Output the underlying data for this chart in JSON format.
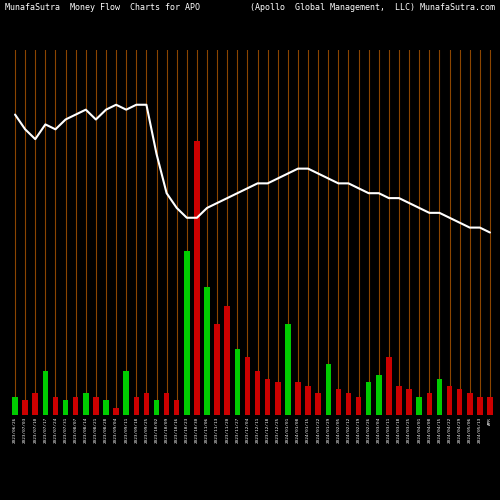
{
  "title_left": "MunafaSutra  Money Flow  Charts for APO",
  "title_right": "(Apollo  Global Management,  LLC) MunafaSutra.com",
  "bg_color": "#000000",
  "grid_color": "#8B4500",
  "line_color": "#FFFFFF",
  "bar_colors": [
    "#00CC00",
    "#CC0000",
    "#CC0000",
    "#00CC00",
    "#CC0000",
    "#00CC00",
    "#CC0000",
    "#00CC00",
    "#CC0000",
    "#00CC00",
    "#CC0000",
    "#00CC00",
    "#CC0000",
    "#CC0000",
    "#00CC00",
    "#CC0000",
    "#CC0000",
    "#00CC00",
    "#CC0000",
    "#00CC00",
    "#CC0000",
    "#CC0000",
    "#00CC00",
    "#CC0000",
    "#CC0000",
    "#CC0000",
    "#CC0000",
    "#00CC00",
    "#CC0000",
    "#CC0000",
    "#CC0000",
    "#00CC00",
    "#CC0000",
    "#CC0000",
    "#CC0000",
    "#00CC00",
    "#00CC00",
    "#CC0000",
    "#CC0000",
    "#CC0000",
    "#00CC00",
    "#CC0000",
    "#00CC00",
    "#CC0000",
    "#CC0000",
    "#CC0000",
    "#CC0000",
    "#CC0000"
  ],
  "bar_values": [
    5,
    4,
    6,
    12,
    5,
    4,
    5,
    6,
    5,
    4,
    2,
    12,
    5,
    6,
    4,
    6,
    4,
    45,
    75,
    35,
    25,
    30,
    18,
    16,
    12,
    10,
    9,
    25,
    9,
    8,
    6,
    14,
    7,
    6,
    5,
    9,
    11,
    16,
    8,
    7,
    5,
    6,
    10,
    8,
    7,
    6,
    5,
    5
  ],
  "line_values": [
    76,
    73,
    71,
    74,
    73,
    75,
    76,
    77,
    75,
    77,
    78,
    77,
    78,
    78,
    68,
    60,
    57,
    55,
    55,
    57,
    58,
    59,
    60,
    61,
    62,
    62,
    63,
    64,
    65,
    65,
    64,
    63,
    62,
    62,
    61,
    60,
    60,
    59,
    59,
    58,
    57,
    56,
    56,
    55,
    54,
    53,
    53,
    52
  ],
  "x_labels": [
    "2023/06/26",
    "2023/07/03",
    "2023/07/10",
    "2023/07/17",
    "2023/07/24",
    "2023/07/31",
    "2023/08/07",
    "2023/08/14",
    "2023/08/21",
    "2023/08/28",
    "2023/09/04",
    "2023/09/11",
    "2023/09/18",
    "2023/09/25",
    "2023/10/02",
    "2023/10/09",
    "2023/10/16",
    "2023/10/23",
    "2023/10/30",
    "2023/11/06",
    "2023/11/13",
    "2023/11/20",
    "2023/11/27",
    "2023/12/04",
    "2023/12/11",
    "2023/12/18",
    "2023/12/25",
    "2024/01/01",
    "2024/01/08",
    "2024/01/15",
    "2024/01/22",
    "2024/01/29",
    "2024/02/05",
    "2024/02/12",
    "2024/02/19",
    "2024/02/26",
    "2024/03/04",
    "2024/03/11",
    "2024/03/18",
    "2024/03/25",
    "2024/04/01",
    "2024/04/08",
    "2024/04/15",
    "2024/04/22",
    "2024/04/29",
    "2024/05/06",
    "2024/05/13",
    "APR"
  ],
  "n_bars": 48,
  "figsize": [
    5.0,
    5.0
  ],
  "dpi": 100
}
